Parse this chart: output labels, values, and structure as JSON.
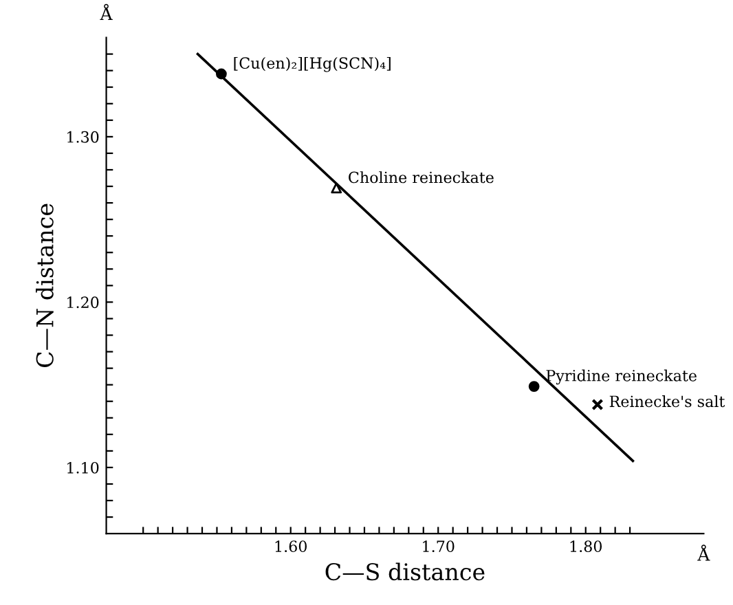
{
  "chart_data": {
    "type": "scatter",
    "xlabel": "C—S distance",
    "ylabel": "C—N distance",
    "annotations": [
      "Å",
      "Å"
    ],
    "series": [
      {
        "name": "[Cu(en)₂][Hg(SCN)₄]",
        "color": "#000000",
        "marker": "circle",
        "x": [
          1.553
        ],
        "values": [
          1.338
        ]
      },
      {
        "name": "Choline reineckate",
        "color": "#000000",
        "marker": "triangle",
        "x": [
          1.631
        ],
        "values": [
          1.269
        ]
      },
      {
        "name": "Pyridine reineckate",
        "color": "#000000",
        "marker": "circle",
        "x": [
          1.765
        ],
        "values": [
          1.149
        ]
      },
      {
        "name": "Reinecke's salt",
        "color": "#000000",
        "marker": "cross",
        "x": [
          1.808
        ],
        "values": [
          1.138
        ]
      },
      {
        "type": "line",
        "color": "#000000",
        "marker": "none",
        "x": [
          1.537,
          1.832
        ],
        "values": [
          1.35,
          1.104
        ]
      }
    ],
    "xlim": [
      1.475,
      1.88
    ],
    "ylim": [
      1.06,
      1.36
    ],
    "xticks": [
      {
        "value": 1.5,
        "label": null
      },
      {
        "value": 1.51,
        "label": null
      },
      {
        "value": 1.52,
        "label": null
      },
      {
        "value": 1.53,
        "label": null
      },
      {
        "value": 1.54,
        "label": null
      },
      {
        "value": 1.55,
        "label": null
      },
      {
        "value": 1.56,
        "label": null
      },
      {
        "value": 1.57,
        "label": null
      },
      {
        "value": 1.58,
        "label": null
      },
      {
        "value": 1.59,
        "label": null
      },
      {
        "value": 1.6,
        "label": "1.60"
      },
      {
        "value": 1.61,
        "label": null
      },
      {
        "value": 1.62,
        "label": null
      },
      {
        "value": 1.63,
        "label": null
      },
      {
        "value": 1.64,
        "label": null
      },
      {
        "value": 1.65,
        "label": null
      },
      {
        "value": 1.66,
        "label": null
      },
      {
        "value": 1.67,
        "label": null
      },
      {
        "value": 1.68,
        "label": null
      },
      {
        "value": 1.69,
        "label": null
      },
      {
        "value": 1.7,
        "label": "1.70"
      },
      {
        "value": 1.71,
        "label": null
      },
      {
        "value": 1.72,
        "label": null
      },
      {
        "value": 1.73,
        "label": null
      },
      {
        "value": 1.74,
        "label": null
      },
      {
        "value": 1.75,
        "label": null
      },
      {
        "value": 1.76,
        "label": null
      },
      {
        "value": 1.77,
        "label": null
      },
      {
        "value": 1.78,
        "label": null
      },
      {
        "value": 1.79,
        "label": null
      },
      {
        "value": 1.8,
        "label": "1.80"
      },
      {
        "value": 1.81,
        "label": null
      },
      {
        "value": 1.82,
        "label": null
      },
      {
        "value": 1.83,
        "label": null
      }
    ],
    "yticks": [
      {
        "value": 1.07,
        "label": null
      },
      {
        "value": 1.08,
        "label": null
      },
      {
        "value": 1.09,
        "label": null
      },
      {
        "value": 1.1,
        "label": "1.10"
      },
      {
        "value": 1.11,
        "label": null
      },
      {
        "value": 1.12,
        "label": null
      },
      {
        "value": 1.13,
        "label": null
      },
      {
        "value": 1.14,
        "label": null
      },
      {
        "value": 1.15,
        "label": null
      },
      {
        "value": 1.16,
        "label": null
      },
      {
        "value": 1.17,
        "label": null
      },
      {
        "value": 1.18,
        "label": null
      },
      {
        "value": 1.19,
        "label": null
      },
      {
        "value": 1.2,
        "label": "1.20"
      },
      {
        "value": 1.21,
        "label": null
      },
      {
        "value": 1.22,
        "label": null
      },
      {
        "value": 1.23,
        "label": null
      },
      {
        "value": 1.24,
        "label": null
      },
      {
        "value": 1.25,
        "label": null
      },
      {
        "value": 1.26,
        "label": null
      },
      {
        "value": 1.27,
        "label": null
      },
      {
        "value": 1.28,
        "label": null
      },
      {
        "value": 1.29,
        "label": null
      },
      {
        "value": 1.3,
        "label": "1.30"
      },
      {
        "value": 1.31,
        "label": null
      },
      {
        "value": 1.32,
        "label": null
      },
      {
        "value": 1.33,
        "label": null
      },
      {
        "value": 1.34,
        "label": null
      },
      {
        "value": 1.35,
        "label": null
      }
    ],
    "grid": false,
    "legend": false
  }
}
